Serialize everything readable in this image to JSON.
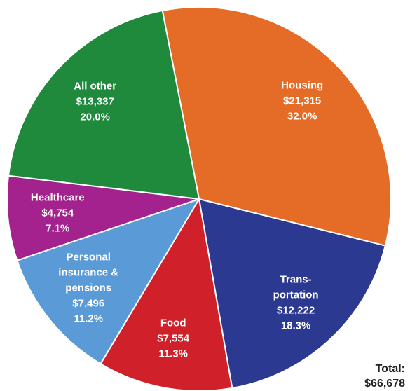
{
  "chart_data": {
    "type": "pie",
    "categories": [
      [
        "Housing"
      ],
      [
        "Trans-",
        "portation"
      ],
      [
        "Food"
      ],
      [
        "Personal",
        "insurance &",
        "pensions"
      ],
      [
        "Healthcare"
      ],
      [
        "All other"
      ]
    ],
    "values": [
      21315,
      12222,
      7554,
      7496,
      4754,
      13337
    ],
    "value_labels": [
      "$21,315",
      "$12,222",
      "$7,554",
      "$7,496",
      "$4,754",
      "$13,337"
    ],
    "percent_labels": [
      "32.0%",
      "18.3%",
      "11.3%",
      "11.2%",
      "7.1%",
      "20.0%"
    ],
    "colors": [
      "#e46c27",
      "#2b3990",
      "#d0202a",
      "#5a9ad6",
      "#a3228e",
      "#1f8a3b"
    ],
    "total_label": "Total:",
    "total": "$66,678"
  }
}
